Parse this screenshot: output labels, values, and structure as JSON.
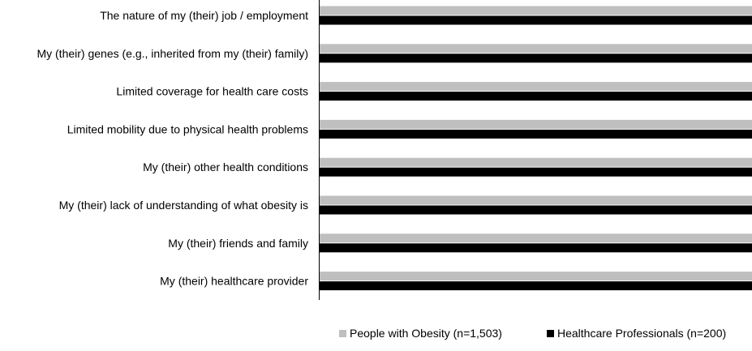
{
  "chart_data": {
    "type": "bar",
    "orientation": "horizontal",
    "title": "",
    "xlabel": "",
    "ylabel": "",
    "grid": false,
    "legend_position": "bottom",
    "categories": [
      "The nature of my (their) job / employment",
      "My (their) genes (e.g., inherited from my (their) family)",
      "Limited coverage for health care costs",
      "Limited mobility due to physical health problems",
      "My (their) other health conditions",
      "My (their) lack of understanding of what obesity is",
      "My (their) friends and family",
      "My (their) healthcare provider"
    ],
    "series": [
      {
        "name": "People with Obesity (n=1,503)",
        "color": "#bfbfbf",
        "values": [
          100,
          100,
          100,
          100,
          100,
          100,
          100,
          100
        ]
      },
      {
        "name": "Healthcare Professionals (n=200)",
        "color": "#000000",
        "values": [
          100,
          100,
          100,
          100,
          100,
          100,
          100,
          100
        ]
      }
    ],
    "xlim": [
      0,
      100
    ]
  }
}
